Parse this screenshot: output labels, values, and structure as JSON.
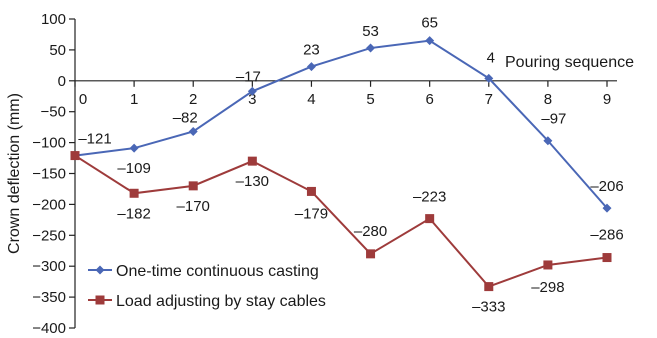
{
  "chart_data": {
    "type": "line",
    "xlabel": "Pouring sequence",
    "ylabel": "Crown deflection (mm)",
    "x": [
      0,
      1,
      2,
      3,
      4,
      5,
      6,
      7,
      8,
      9
    ],
    "xlim": [
      0,
      9
    ],
    "ylim": [
      -400,
      100
    ],
    "y_ticks": [
      100,
      50,
      0,
      -50,
      -100,
      -150,
      -200,
      -250,
      -300,
      -350,
      -400
    ],
    "x_ticks": [
      0,
      1,
      2,
      3,
      4,
      5,
      6,
      7,
      8,
      9
    ],
    "x_axis_crosses_at_y": 0,
    "grid": false,
    "legend_position": "bottom-left",
    "series": [
      {
        "name": "One-time continuous casting",
        "color": "#4a67b6",
        "marker": "diamond",
        "values": [
          -121,
          -109,
          -82,
          -17,
          23,
          53,
          65,
          4,
          -97,
          -206
        ],
        "labels": [
          "–121",
          "–109",
          "–82",
          "–17",
          "23",
          "53",
          "65",
          "4",
          "–97",
          "–206"
        ]
      },
      {
        "name": "Load adjusting by stay cables",
        "color": "#9e3b3b",
        "marker": "square",
        "values": [
          -121,
          -182,
          -170,
          -130,
          -179,
          -280,
          -223,
          -333,
          -298,
          -286
        ],
        "labels": [
          "",
          "–182",
          "–170",
          "–130",
          "–179",
          "–280",
          "–223",
          "–333",
          "–298",
          "–286"
        ]
      }
    ]
  }
}
